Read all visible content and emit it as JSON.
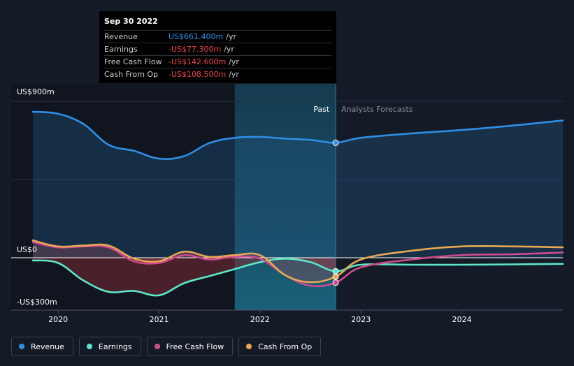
{
  "tooltip": {
    "date": "Sep 30 2022",
    "rows": [
      {
        "label": "Revenue",
        "value": "US$661.400m",
        "unit": "/yr",
        "color": "#2d8fe8"
      },
      {
        "label": "Earnings",
        "value": "-US$77.300m",
        "unit": "/yr",
        "color": "#ef4444"
      },
      {
        "label": "Free Cash Flow",
        "value": "-US$142.600m",
        "unit": "/yr",
        "color": "#ef4444"
      },
      {
        "label": "Cash From Op",
        "value": "-US$108.500m",
        "unit": "/yr",
        "color": "#ef4444"
      }
    ]
  },
  "chart_data": {
    "type": "line",
    "title": "",
    "xlabel": "",
    "ylabel": "",
    "ylim": [
      -300,
      900
    ],
    "y_tick_labels": {
      "top": "US$900m",
      "zero": "US$0",
      "bottom": "-US$300m"
    },
    "x_ticks": [
      {
        "value": 2020,
        "label": "2020"
      },
      {
        "value": 2021,
        "label": "2021"
      },
      {
        "value": 2022,
        "label": "2022"
      },
      {
        "value": 2023,
        "label": "2023"
      },
      {
        "value": 2024,
        "label": "2024"
      }
    ],
    "xlim": [
      2019.5,
      2025.0
    ],
    "past_label": "Past",
    "forecast_label": "Analysts Forecasts",
    "past_end": 2022.75,
    "highlight_start": 2021.75,
    "series": [
      {
        "name": "Revenue",
        "color": "#2d8fe8",
        "points": [
          [
            2019.75,
            840
          ],
          [
            2020.0,
            828
          ],
          [
            2020.25,
            770
          ],
          [
            2020.5,
            650
          ],
          [
            2020.75,
            615
          ],
          [
            2021.0,
            570
          ],
          [
            2021.25,
            585
          ],
          [
            2021.5,
            660
          ],
          [
            2021.75,
            690
          ],
          [
            2022.0,
            695
          ],
          [
            2022.25,
            685
          ],
          [
            2022.5,
            678
          ],
          [
            2022.75,
            661.4
          ],
          [
            2023.0,
            690
          ],
          [
            2023.5,
            715
          ],
          [
            2024.0,
            735
          ],
          [
            2024.5,
            760
          ],
          [
            2025.0,
            790
          ]
        ]
      },
      {
        "name": "Earnings",
        "color": "#5ee6c8",
        "points": [
          [
            2019.75,
            -15
          ],
          [
            2020.0,
            -30
          ],
          [
            2020.25,
            -130
          ],
          [
            2020.5,
            -195
          ],
          [
            2020.75,
            -190
          ],
          [
            2021.0,
            -215
          ],
          [
            2021.25,
            -145
          ],
          [
            2021.5,
            -105
          ],
          [
            2021.75,
            -65
          ],
          [
            2022.0,
            -25
          ],
          [
            2022.25,
            -5
          ],
          [
            2022.5,
            -25
          ],
          [
            2022.75,
            -77.3
          ],
          [
            2023.0,
            -40
          ],
          [
            2023.5,
            -40
          ],
          [
            2024.0,
            -40
          ],
          [
            2024.5,
            -38
          ],
          [
            2025.0,
            -35
          ]
        ]
      },
      {
        "name": "Free Cash Flow",
        "color": "#d04a8f",
        "points": [
          [
            2019.75,
            90
          ],
          [
            2020.0,
            60
          ],
          [
            2020.25,
            65
          ],
          [
            2020.5,
            60
          ],
          [
            2020.75,
            -20
          ],
          [
            2021.0,
            -30
          ],
          [
            2021.25,
            15
          ],
          [
            2021.5,
            -10
          ],
          [
            2021.75,
            5
          ],
          [
            2022.0,
            -5
          ],
          [
            2022.25,
            -100
          ],
          [
            2022.5,
            -160
          ],
          [
            2022.75,
            -142.6
          ],
          [
            2023.0,
            -55
          ],
          [
            2023.5,
            -10
          ],
          [
            2024.0,
            15
          ],
          [
            2024.5,
            20
          ],
          [
            2025.0,
            30
          ]
        ]
      },
      {
        "name": "Cash From Op",
        "color": "#e9a853",
        "points": [
          [
            2019.75,
            100
          ],
          [
            2020.0,
            65
          ],
          [
            2020.25,
            70
          ],
          [
            2020.5,
            70
          ],
          [
            2020.75,
            -5
          ],
          [
            2021.0,
            -20
          ],
          [
            2021.25,
            35
          ],
          [
            2021.5,
            5
          ],
          [
            2021.75,
            15
          ],
          [
            2022.0,
            15
          ],
          [
            2022.25,
            -100
          ],
          [
            2022.5,
            -140
          ],
          [
            2022.75,
            -108.5
          ],
          [
            2023.0,
            -10
          ],
          [
            2023.5,
            40
          ],
          [
            2024.0,
            65
          ],
          [
            2024.5,
            65
          ],
          [
            2025.0,
            60
          ]
        ]
      }
    ]
  },
  "legend": [
    {
      "label": "Revenue",
      "color": "#2d8fe8"
    },
    {
      "label": "Earnings",
      "color": "#5ee6c8"
    },
    {
      "label": "Free Cash Flow",
      "color": "#d04a8f"
    },
    {
      "label": "Cash From Op",
      "color": "#e9a853"
    }
  ]
}
